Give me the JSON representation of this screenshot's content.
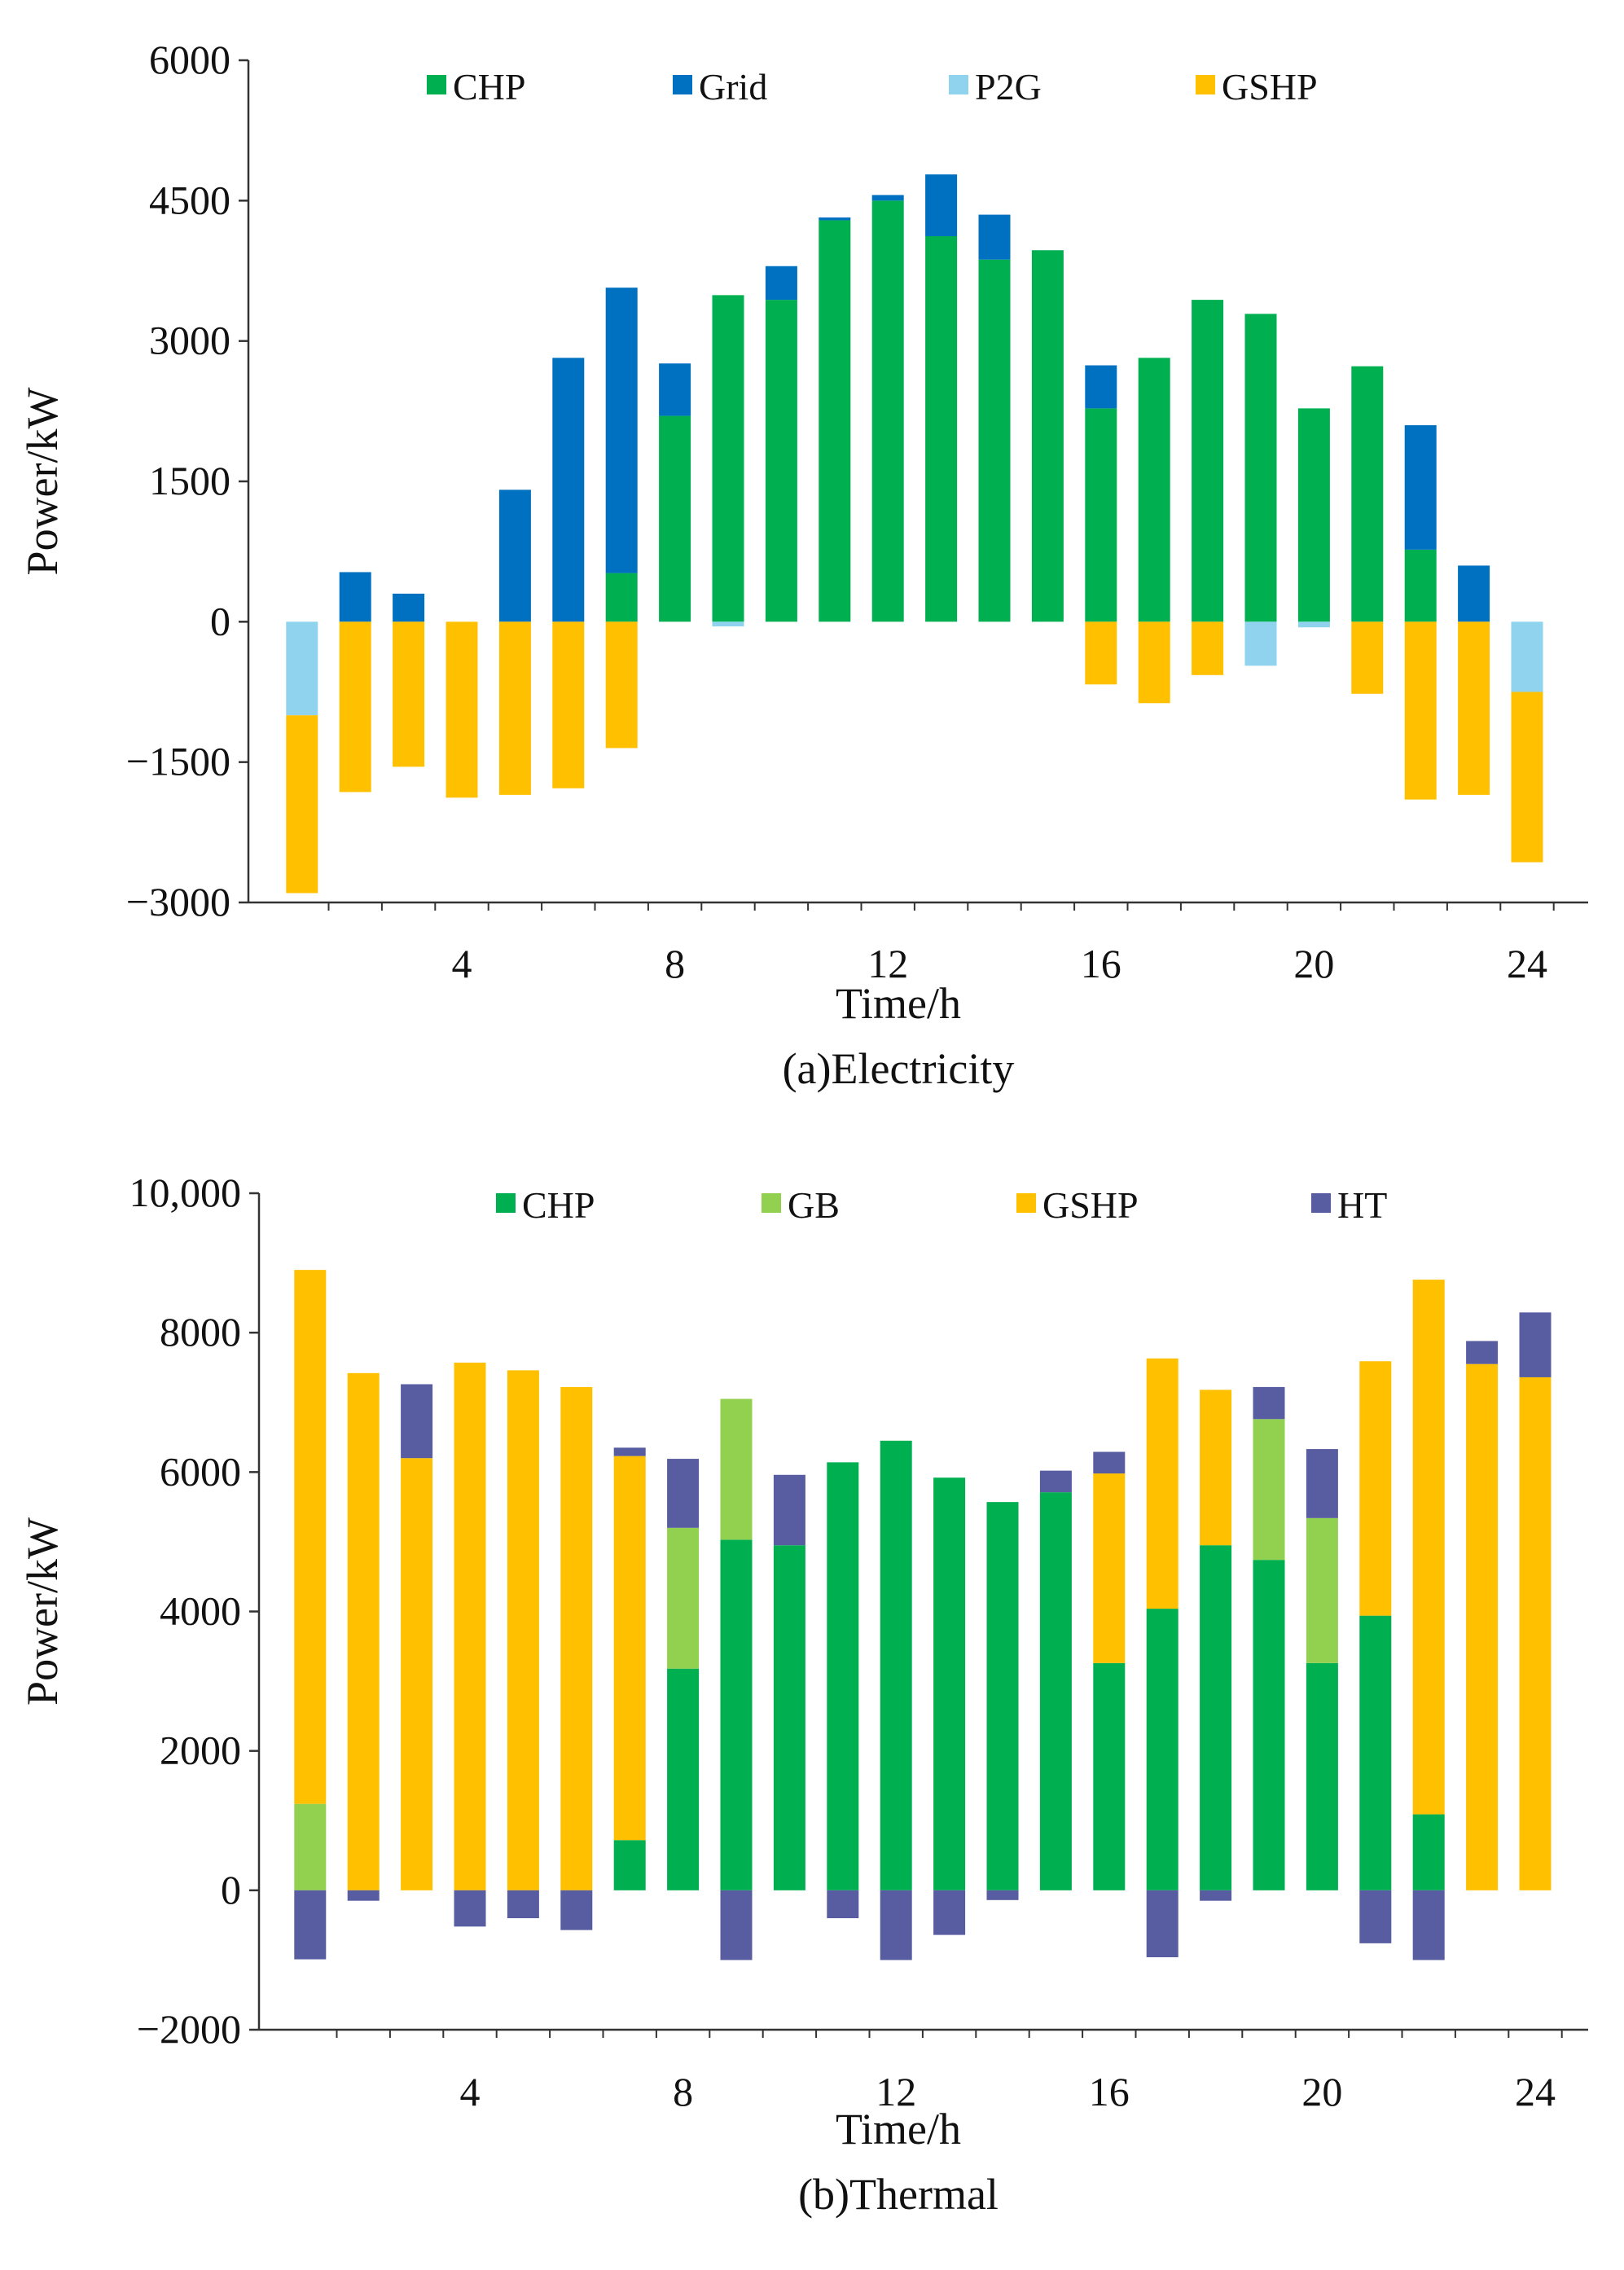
{
  "colors": {
    "CHP": "#00b050",
    "Grid": "#0070c0",
    "P2G": "#8fd3ee",
    "GSHP": "#ffc000",
    "GB": "#92d050",
    "HT": "#585ca0"
  },
  "chart_data": [
    {
      "type": "bar",
      "stacked": true,
      "caption": "(a)Electricity",
      "xlabel": "Time/h",
      "ylabel": "Power/kW",
      "ylim": [
        -3000,
        6000
      ],
      "yticks": [
        6000,
        4500,
        3000,
        1500,
        0,
        -1500,
        -3000
      ],
      "ytick_labels": [
        "6000",
        "4500",
        "3000",
        "1500",
        "0",
        "−1500",
        "−3000"
      ],
      "xticks": [
        4,
        8,
        12,
        16,
        20,
        24
      ],
      "legend": [
        "CHP",
        "Grid",
        "P2G",
        "GSHP"
      ],
      "legend_position": "top",
      "x": [
        1,
        2,
        3,
        4,
        5,
        6,
        7,
        8,
        9,
        10,
        11,
        12,
        13,
        14,
        15,
        16,
        17,
        18,
        19,
        20,
        21,
        22,
        23,
        24
      ],
      "series": [
        {
          "name": "CHP",
          "values": [
            0,
            0,
            0,
            0,
            0,
            0,
            520,
            2200,
            3490,
            3440,
            4290,
            4500,
            4120,
            3870,
            3970,
            2280,
            2820,
            3440,
            3290,
            2280,
            2730,
            770,
            0,
            0
          ]
        },
        {
          "name": "Grid",
          "values": [
            0,
            530,
            300,
            0,
            1410,
            2820,
            3050,
            560,
            0,
            360,
            30,
            60,
            660,
            480,
            0,
            460,
            0,
            0,
            0,
            0,
            0,
            1330,
            600,
            0
          ]
        },
        {
          "name": "P2G",
          "values": [
            -1000,
            0,
            0,
            0,
            0,
            0,
            0,
            0,
            -50,
            0,
            0,
            0,
            0,
            0,
            0,
            0,
            0,
            0,
            -470,
            -60,
            0,
            0,
            0,
            -750
          ]
        },
        {
          "name": "GSHP",
          "values": [
            -1900,
            -1820,
            -1550,
            -1880,
            -1850,
            -1780,
            -1350,
            0,
            0,
            0,
            0,
            0,
            0,
            0,
            0,
            -670,
            -870,
            -570,
            0,
            0,
            -770,
            -1900,
            -1850,
            -1820
          ]
        }
      ]
    },
    {
      "type": "bar",
      "stacked": true,
      "caption": "(b)Thermal",
      "xlabel": "Time/h",
      "ylabel": "Power/kW",
      "ylim": [
        -2000,
        10000
      ],
      "yticks": [
        10000,
        8000,
        6000,
        4000,
        2000,
        0,
        -2000
      ],
      "ytick_labels": [
        "10,000",
        "8000",
        "6000",
        "4000",
        "2000",
        "0",
        "−2000"
      ],
      "xticks": [
        4,
        8,
        12,
        16,
        20,
        24
      ],
      "legend": [
        "CHP",
        "GB",
        "GSHP",
        "HT"
      ],
      "legend_position": "top",
      "x": [
        1,
        2,
        3,
        4,
        5,
        6,
        7,
        8,
        9,
        10,
        11,
        12,
        13,
        14,
        15,
        16,
        17,
        18,
        19,
        20,
        21,
        22,
        23,
        24
      ],
      "series": [
        {
          "name": "CHP",
          "values": [
            0,
            0,
            0,
            0,
            0,
            0,
            720,
            3180,
            5030,
            4950,
            6140,
            6450,
            5920,
            5570,
            5710,
            3260,
            4040,
            4950,
            4740,
            3260,
            3940,
            1090,
            0,
            0
          ]
        },
        {
          "name": "GB",
          "values": [
            1240,
            0,
            0,
            0,
            0,
            0,
            0,
            2020,
            2020,
            0,
            0,
            0,
            0,
            0,
            0,
            0,
            0,
            0,
            2020,
            2080,
            0,
            0,
            0,
            0
          ]
        },
        {
          "name": "GSHP",
          "values": [
            7660,
            7420,
            6200,
            7570,
            7460,
            7220,
            5510,
            0,
            0,
            0,
            0,
            0,
            0,
            0,
            0,
            2720,
            3590,
            2230,
            0,
            0,
            3650,
            7670,
            7550,
            7360
          ]
        },
        {
          "name": "HT",
          "values": [
            -990,
            -150,
            1060,
            -520,
            -400,
            -570,
            120,
            990,
            -1000,
            1010,
            -400,
            -1000,
            -640,
            -140,
            310,
            310,
            -960,
            -150,
            460,
            990,
            -760,
            -1000,
            330,
            930
          ]
        }
      ]
    }
  ]
}
